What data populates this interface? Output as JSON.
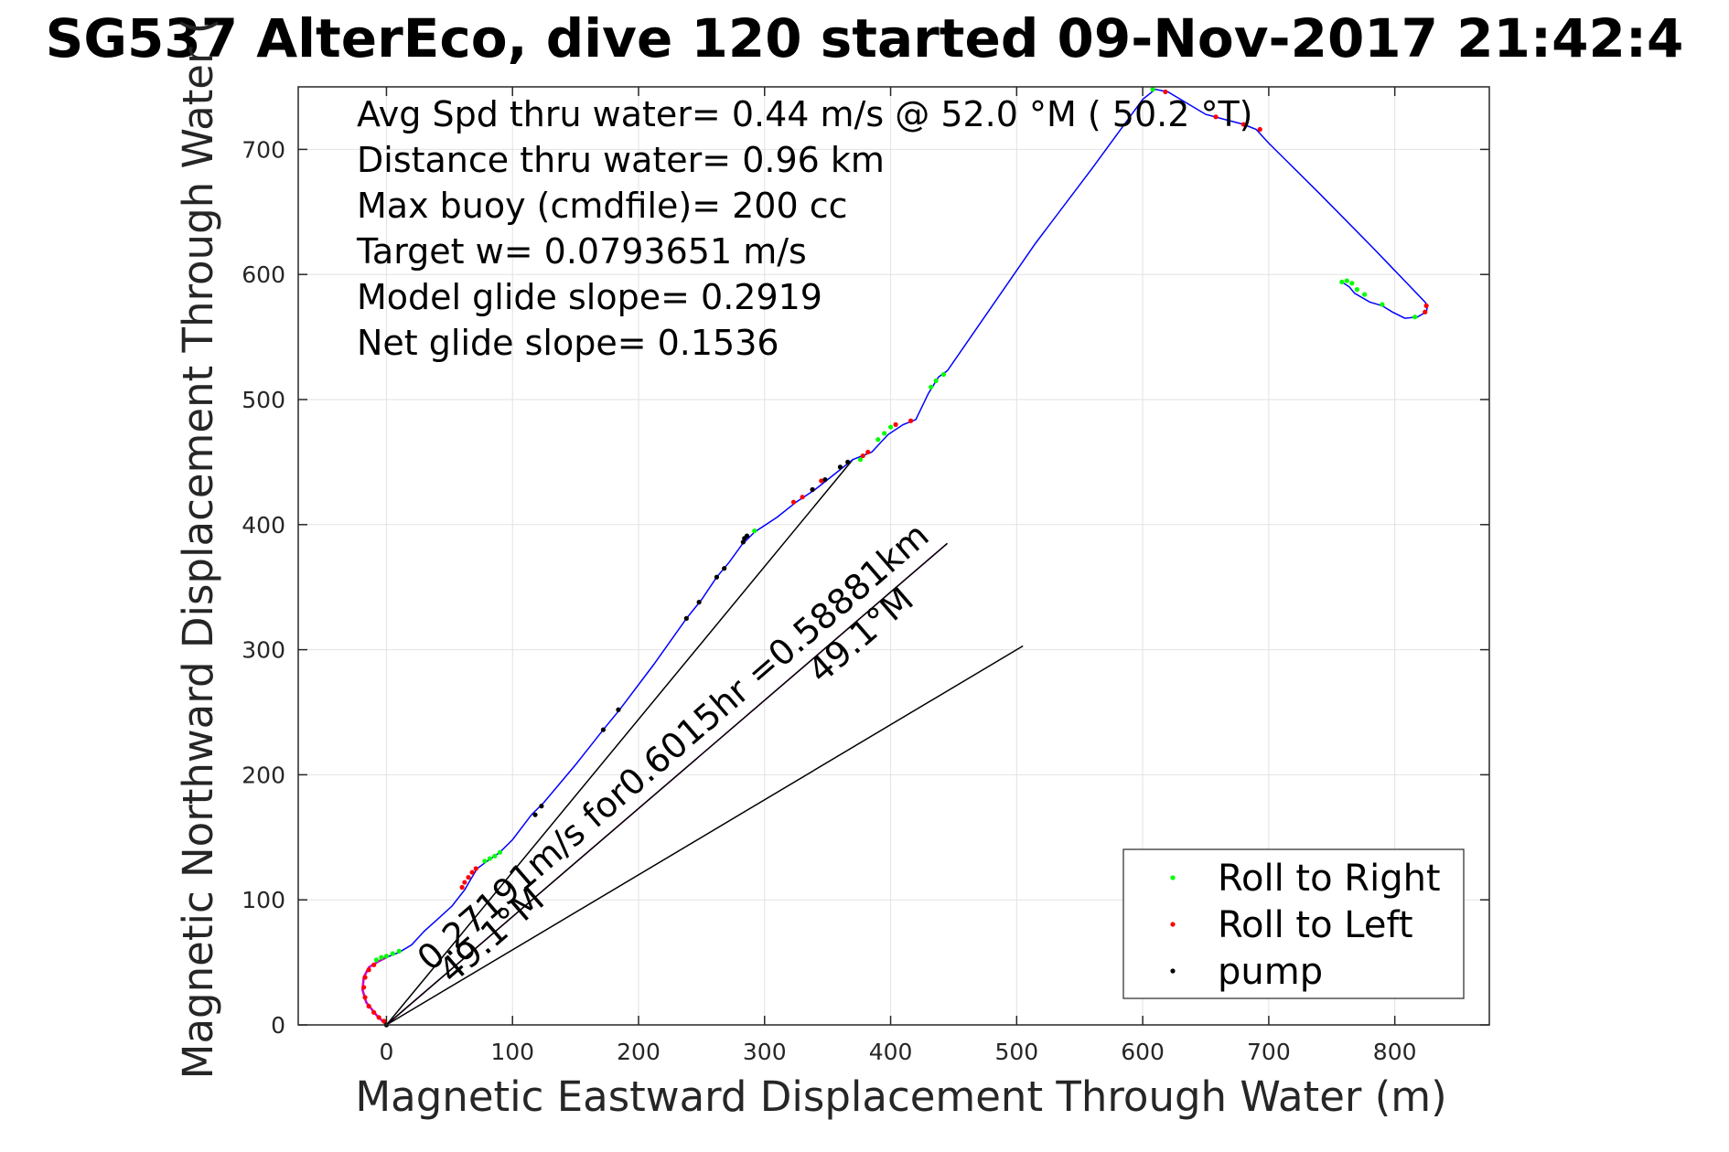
{
  "chart_data": {
    "type": "line",
    "title": "SG537 AlterEco, dive 120 started 09-Nov-2017 21:42:4",
    "xlabel": "Magnetic Eastward Displacement Through Water (m)",
    "ylabel": "Magnetic Northward Displacement Through Water (",
    "xlim": [
      -70,
      875
    ],
    "ylim": [
      0,
      750
    ],
    "xticks": [
      0,
      100,
      200,
      300,
      400,
      500,
      600,
      700,
      800
    ],
    "yticks": [
      0,
      100,
      200,
      300,
      400,
      500,
      600,
      700
    ],
    "grid": true,
    "legend_position": "bottom-right",
    "stats_text": [
      "Avg Spd thru water=  0.44 m/s @  52.0 °M ( 50.2 °T)",
      "Distance thru water=  0.96 km",
      "Max buoy (cmdfile)= 200 cc",
      "Target w= 0.0793651 m/s",
      "Model glide slope= 0.2919",
      "Net glide slope= 0.1536"
    ],
    "annotations": [
      {
        "text": "0.27191m/s for0.6015hr =0.58881km",
        "anchor": [
          35,
          42
        ],
        "angle_deg": 40.9
      },
      {
        "text": "49.1°M",
        "anchor": [
          52,
          32
        ],
        "angle_deg": 40.9
      },
      {
        "text": "49.1°M",
        "anchor": [
          345,
          272
        ],
        "angle_deg": 40.9
      }
    ],
    "track_color": "#0000ff",
    "track": [
      [
        0,
        0
      ],
      [
        -8,
        8
      ],
      [
        -16,
        18
      ],
      [
        -19,
        28
      ],
      [
        -18,
        38
      ],
      [
        -14,
        46
      ],
      [
        -6,
        51
      ],
      [
        0,
        54
      ],
      [
        10,
        58
      ],
      [
        20,
        64
      ],
      [
        30,
        75
      ],
      [
        40,
        84
      ],
      [
        52,
        95
      ],
      [
        62,
        108
      ],
      [
        66,
        115
      ],
      [
        72,
        125
      ],
      [
        80,
        131
      ],
      [
        90,
        138
      ],
      [
        100,
        148
      ],
      [
        115,
        168
      ],
      [
        125,
        178
      ],
      [
        150,
        208
      ],
      [
        172,
        236
      ],
      [
        185,
        252
      ],
      [
        212,
        288
      ],
      [
        238,
        325
      ],
      [
        250,
        340
      ],
      [
        262,
        358
      ],
      [
        272,
        370
      ],
      [
        282,
        384
      ],
      [
        292,
        394
      ],
      [
        310,
        406
      ],
      [
        325,
        418
      ],
      [
        340,
        428
      ],
      [
        355,
        440
      ],
      [
        370,
        452
      ],
      [
        385,
        458
      ],
      [
        398,
        472
      ],
      [
        410,
        480
      ],
      [
        420,
        484
      ],
      [
        430,
        505
      ],
      [
        438,
        518
      ],
      [
        445,
        523
      ],
      [
        515,
        625
      ],
      [
        560,
        685
      ],
      [
        600,
        740
      ],
      [
        610,
        748
      ],
      [
        620,
        746
      ],
      [
        650,
        728
      ],
      [
        665,
        724
      ],
      [
        680,
        720
      ],
      [
        690,
        716
      ],
      [
        700,
        705
      ],
      [
        740,
        665
      ],
      [
        782,
        622
      ],
      [
        824,
        578
      ],
      [
        826,
        575
      ],
      [
        825,
        570
      ],
      [
        818,
        566
      ],
      [
        808,
        565
      ],
      [
        798,
        570
      ],
      [
        790,
        575
      ],
      [
        780,
        578
      ],
      [
        768,
        585
      ],
      [
        764,
        590
      ],
      [
        758,
        594
      ]
    ],
    "track_colors_hint": "magenta segment near origin, green and red dot segments along track",
    "series": [
      {
        "name": "Roll to Right",
        "color": "#00ff00",
        "marker": "dot",
        "points": [
          [
            -8,
            52
          ],
          [
            -4,
            54
          ],
          [
            0,
            55
          ],
          [
            5,
            57
          ],
          [
            10,
            59
          ],
          [
            78,
            131
          ],
          [
            82,
            133
          ],
          [
            86,
            135
          ],
          [
            90,
            138
          ],
          [
            292,
            395
          ],
          [
            376,
            452
          ],
          [
            390,
            468
          ],
          [
            395,
            473
          ],
          [
            400,
            478
          ],
          [
            432,
            510
          ],
          [
            436,
            515
          ],
          [
            442,
            520
          ],
          [
            608,
            748
          ],
          [
            758,
            594
          ],
          [
            762,
            595
          ],
          [
            766,
            593
          ],
          [
            770,
            588
          ],
          [
            776,
            584
          ],
          [
            790,
            576
          ],
          [
            816,
            566
          ]
        ]
      },
      {
        "name": "Roll to Left",
        "color": "#ff0000",
        "marker": "dot",
        "points": [
          [
            -2,
            3
          ],
          [
            -6,
            6
          ],
          [
            -10,
            10
          ],
          [
            -14,
            15
          ],
          [
            -17,
            22
          ],
          [
            -18,
            30
          ],
          [
            -17,
            38
          ],
          [
            -14,
            44
          ],
          [
            -10,
            48
          ],
          [
            60,
            110
          ],
          [
            62,
            114
          ],
          [
            65,
            118
          ],
          [
            68,
            122
          ],
          [
            71,
            125
          ],
          [
            323,
            418
          ],
          [
            330,
            422
          ],
          [
            338,
            428
          ],
          [
            345,
            435
          ],
          [
            378,
            455
          ],
          [
            382,
            458
          ],
          [
            404,
            480
          ],
          [
            416,
            483
          ],
          [
            618,
            746
          ],
          [
            658,
            726
          ],
          [
            680,
            720
          ],
          [
            693,
            716
          ],
          [
            825,
            575
          ],
          [
            824,
            570
          ]
        ]
      },
      {
        "name": "pump",
        "color": "#000000",
        "marker": "dot",
        "points": [
          [
            0,
            0
          ],
          [
            118,
            168
          ],
          [
            123,
            175
          ],
          [
            172,
            236
          ],
          [
            184,
            252
          ],
          [
            238,
            325
          ],
          [
            248,
            338
          ],
          [
            262,
            358
          ],
          [
            268,
            365
          ],
          [
            283,
            386
          ],
          [
            284,
            389
          ],
          [
            286,
            391
          ],
          [
            338,
            428
          ],
          [
            348,
            436
          ],
          [
            360,
            446
          ],
          [
            366,
            450
          ]
        ]
      }
    ],
    "reference_lines": [
      {
        "color": "#000000",
        "from": [
          0,
          0
        ],
        "to": [
          370,
          452
        ]
      },
      {
        "color": "#000000",
        "from": [
          0,
          0
        ],
        "to": [
          505,
          303
        ]
      },
      {
        "color": "#cc00cc",
        "from": [
          0,
          0
        ],
        "to": [
          445,
          385
        ]
      },
      {
        "color": "#000000",
        "from": [
          0,
          0
        ],
        "to": [
          445,
          385
        ]
      }
    ],
    "legend": [
      {
        "label": "Roll to Right",
        "color": "#00ff00"
      },
      {
        "label": "Roll to Left",
        "color": "#ff0000"
      },
      {
        "label": "pump",
        "color": "#000000"
      }
    ]
  }
}
